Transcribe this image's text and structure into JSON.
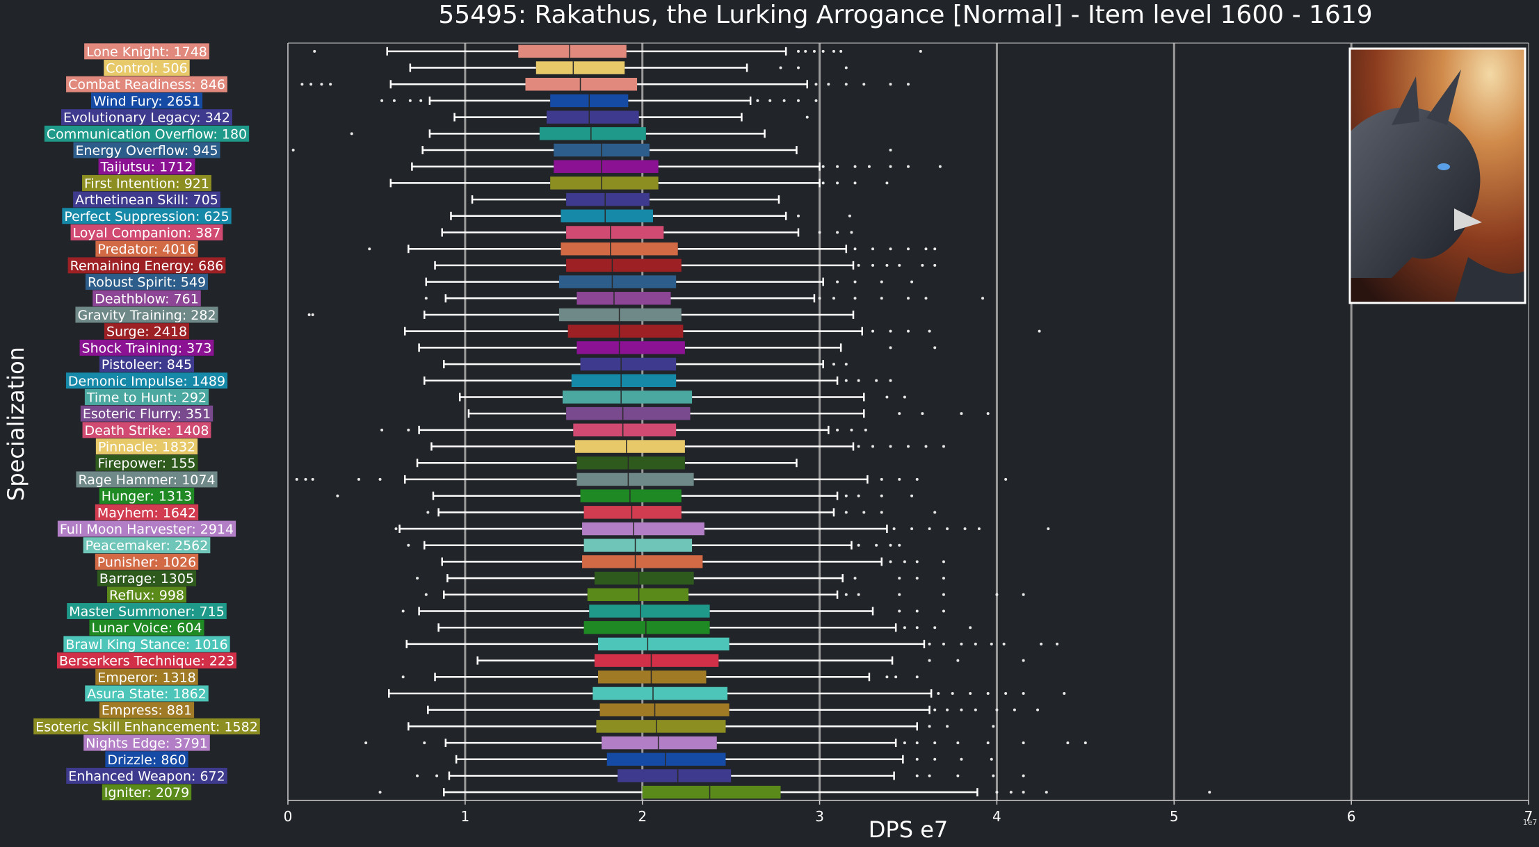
{
  "chart_data": {
    "type": "box",
    "title": "55495: Rakathus, the Lurking Arrogance [Normal] - Item level 1600 - 1619",
    "xlabel": "DPS e7",
    "ylabel": "Specialization",
    "xlim": [
      0,
      7
    ],
    "x_ticks": [
      "0",
      "1",
      "2",
      "3",
      "4",
      "5",
      "6",
      "7"
    ],
    "x_offset_label": "1e7",
    "grid": "vertical lines at 1, 2, 3, 4, 5, 6",
    "image_panel": "boss portrait (dark dragon) in top-right corner",
    "colors": {
      "background": "#212428",
      "grid": "#9a9a9a",
      "text": "#ffffff",
      "whisker": "#ffffff"
    },
    "categories": [
      "Lone Knight: 1748",
      "Control: 506",
      "Combat Readiness: 846",
      "Wind Fury: 2651",
      "Evolutionary Legacy: 342",
      "Communication Overflow: 180",
      "Energy Overflow: 945",
      "Taijutsu: 1712",
      "First Intention: 921",
      "Arthetinean Skill: 705",
      "Perfect Suppression: 625",
      "Loyal Companion: 387",
      "Predator: 4016",
      "Remaining Energy: 686",
      "Robust Spirit: 549",
      "Deathblow: 761",
      "Gravity Training: 282",
      "Surge: 2418",
      "Shock Training: 373",
      "Pistoleer: 845",
      "Demonic Impulse: 1489",
      "Time to Hunt: 292",
      "Esoteric Flurry: 351",
      "Death Strike: 1408",
      "Pinnacle: 1832",
      "Firepower: 155",
      "Rage Hammer: 1074",
      "Hunger: 1313",
      "Mayhem: 1642",
      "Full Moon Harvester: 2914",
      "Peacemaker: 2562",
      "Punisher: 1026",
      "Barrage: 1305",
      "Reflux: 998",
      "Master Summoner: 715",
      "Lunar Voice: 604",
      "Brawl King Stance: 1016",
      "Berserkers Technique: 223",
      "Emperor: 1318",
      "Asura State: 1862",
      "Empress: 881",
      "Esoteric Skill Enhancement: 1582",
      "Nights Edge: 3791",
      "Drizzle: 860",
      "Enhanced Weapon: 672",
      "Igniter: 2079"
    ],
    "series": [
      {
        "color": "#e0897c",
        "values": {
          "whislo": 0.56,
          "q1": 1.3,
          "med": 1.59,
          "q3": 1.91,
          "whishi": 2.81,
          "fliers": [
            0.15,
            2.88,
            2.92,
            2.97,
            3.02,
            3.08,
            3.12,
            3.57
          ]
        }
      },
      {
        "color": "#e8c96a",
        "values": {
          "whislo": 0.69,
          "q1": 1.4,
          "med": 1.61,
          "q3": 1.9,
          "whishi": 2.59,
          "fliers": [
            2.78,
            2.88,
            3.15
          ]
        }
      },
      {
        "color": "#e0897c",
        "values": {
          "whislo": 0.58,
          "q1": 1.34,
          "med": 1.65,
          "q3": 1.97,
          "whishi": 2.93,
          "fliers": [
            0.08,
            0.13,
            0.19,
            0.24,
            2.98,
            3.05,
            3.15,
            3.25,
            3.4,
            3.5
          ]
        }
      },
      {
        "color": "#154aa5",
        "values": {
          "whislo": 0.8,
          "q1": 1.48,
          "med": 1.7,
          "q3": 1.92,
          "whishi": 2.61,
          "fliers": [
            0.53,
            0.6,
            0.69,
            0.75,
            2.65,
            2.72,
            2.8,
            2.88,
            2.98
          ]
        }
      },
      {
        "color": "#3e3a8e",
        "values": {
          "whislo": 0.94,
          "q1": 1.46,
          "med": 1.7,
          "q3": 1.98,
          "whishi": 2.56,
          "fliers": [
            2.93
          ]
        }
      },
      {
        "color": "#1f9a8a",
        "values": {
          "whislo": 0.8,
          "q1": 1.42,
          "med": 1.71,
          "q3": 2.02,
          "whishi": 2.69,
          "fliers": [
            0.36
          ]
        }
      },
      {
        "color": "#2d5d8a",
        "values": {
          "whislo": 0.76,
          "q1": 1.5,
          "med": 1.77,
          "q3": 2.04,
          "whishi": 2.87,
          "fliers": [
            0.03,
            3.4
          ]
        }
      },
      {
        "color": "#8a1293",
        "values": {
          "whislo": 0.7,
          "q1": 1.5,
          "med": 1.77,
          "q3": 2.09,
          "whishi": 3.0,
          "fliers": [
            3.02,
            3.1,
            3.2,
            3.28,
            3.4,
            3.5,
            3.68
          ]
        }
      },
      {
        "color": "#8d8e22",
        "values": {
          "whislo": 0.58,
          "q1": 1.48,
          "med": 1.77,
          "q3": 2.09,
          "whishi": 3.0,
          "fliers": [
            3.02,
            3.1,
            3.2,
            3.38
          ]
        }
      },
      {
        "color": "#3e3a8e",
        "values": {
          "whislo": 1.04,
          "q1": 1.57,
          "med": 1.79,
          "q3": 2.04,
          "whishi": 2.77,
          "fliers": []
        }
      },
      {
        "color": "#1688a8",
        "values": {
          "whislo": 0.92,
          "q1": 1.54,
          "med": 1.79,
          "q3": 2.06,
          "whishi": 2.81,
          "fliers": [
            2.88,
            3.17
          ]
        }
      },
      {
        "color": "#d04a72",
        "values": {
          "whislo": 0.87,
          "q1": 1.57,
          "med": 1.82,
          "q3": 2.12,
          "whishi": 2.88,
          "fliers": [
            3.0,
            3.1,
            3.18
          ]
        }
      },
      {
        "color": "#d26a46",
        "values": {
          "whislo": 0.68,
          "q1": 1.54,
          "med": 1.82,
          "q3": 2.2,
          "whishi": 3.15,
          "fliers": [
            0.46,
            3.2,
            3.3,
            3.4,
            3.5,
            3.6,
            3.65
          ]
        }
      },
      {
        "color": "#9c2024",
        "values": {
          "whislo": 0.83,
          "q1": 1.57,
          "med": 1.83,
          "q3": 2.22,
          "whishi": 3.19,
          "fliers": [
            3.22,
            3.3,
            3.38,
            3.45,
            3.58,
            3.65
          ]
        }
      },
      {
        "color": "#2d5d8a",
        "values": {
          "whislo": 0.78,
          "q1": 1.53,
          "med": 1.83,
          "q3": 2.19,
          "whishi": 3.02,
          "fliers": [
            3.1,
            3.2,
            3.35,
            3.52
          ]
        }
      },
      {
        "color": "#8d4595",
        "values": {
          "whislo": 0.89,
          "q1": 1.63,
          "med": 1.84,
          "q3": 2.16,
          "whishi": 2.97,
          "fliers": [
            0.78,
            3.0,
            3.08,
            3.2,
            3.35,
            3.5,
            3.6,
            3.92
          ]
        }
      },
      {
        "color": "#6f8888",
        "values": {
          "whislo": 0.77,
          "q1": 1.53,
          "med": 1.87,
          "q3": 2.22,
          "whishi": 3.19,
          "fliers": [
            0.12,
            0.14
          ]
        }
      },
      {
        "color": "#9c2024",
        "values": {
          "whislo": 0.66,
          "q1": 1.58,
          "med": 1.87,
          "q3": 2.23,
          "whishi": 3.24,
          "fliers": [
            3.3,
            3.4,
            3.5,
            3.62,
            4.24
          ]
        }
      },
      {
        "color": "#8a1293",
        "values": {
          "whislo": 0.74,
          "q1": 1.63,
          "med": 1.87,
          "q3": 2.24,
          "whishi": 3.12,
          "fliers": [
            3.4,
            3.65
          ]
        }
      },
      {
        "color": "#3e3a8e",
        "values": {
          "whislo": 0.88,
          "q1": 1.65,
          "med": 1.88,
          "q3": 2.19,
          "whishi": 3.02,
          "fliers": [
            3.08,
            3.15
          ]
        }
      },
      {
        "color": "#1688a8",
        "values": {
          "whislo": 0.77,
          "q1": 1.6,
          "med": 1.88,
          "q3": 2.19,
          "whishi": 3.1,
          "fliers": [
            3.15,
            3.22,
            3.32,
            3.4
          ]
        }
      },
      {
        "color": "#4aa8a0",
        "values": {
          "whislo": 0.97,
          "q1": 1.55,
          "med": 1.88,
          "q3": 2.28,
          "whishi": 3.25,
          "fliers": [
            3.38,
            3.48
          ]
        }
      },
      {
        "color": "#7a4a8e",
        "values": {
          "whislo": 1.02,
          "q1": 1.57,
          "med": 1.89,
          "q3": 2.27,
          "whishi": 3.25,
          "fliers": [
            3.45,
            3.58,
            3.8,
            3.95
          ]
        }
      },
      {
        "color": "#d04a72",
        "values": {
          "whislo": 0.74,
          "q1": 1.61,
          "med": 1.89,
          "q3": 2.19,
          "whishi": 3.05,
          "fliers": [
            0.53,
            0.68,
            3.1,
            3.18,
            3.26
          ]
        }
      },
      {
        "color": "#e8c96a",
        "values": {
          "whislo": 0.81,
          "q1": 1.62,
          "med": 1.91,
          "q3": 2.24,
          "whishi": 3.19,
          "fliers": [
            3.22,
            3.3,
            3.4,
            3.5,
            3.6,
            3.7
          ]
        }
      },
      {
        "color": "#2f5a1e",
        "values": {
          "whislo": 0.73,
          "q1": 1.63,
          "med": 1.92,
          "q3": 2.24,
          "whishi": 2.87,
          "fliers": []
        }
      },
      {
        "color": "#6f8888",
        "values": {
          "whislo": 0.66,
          "q1": 1.63,
          "med": 1.92,
          "q3": 2.29,
          "whishi": 3.27,
          "fliers": [
            0.05,
            0.1,
            0.14,
            0.4,
            0.52,
            3.35,
            3.45,
            3.55,
            4.05
          ]
        }
      },
      {
        "color": "#1f8a24",
        "values": {
          "whislo": 0.82,
          "q1": 1.65,
          "med": 1.93,
          "q3": 2.22,
          "whishi": 3.1,
          "fliers": [
            0.28,
            3.15,
            3.22,
            3.35,
            3.52
          ]
        }
      },
      {
        "color": "#d23c50",
        "values": {
          "whislo": 0.85,
          "q1": 1.67,
          "med": 1.94,
          "q3": 2.22,
          "whishi": 3.08,
          "fliers": [
            0.79,
            3.15,
            3.25,
            3.35,
            3.65
          ]
        }
      },
      {
        "color": "#b27ec5",
        "values": {
          "whislo": 0.63,
          "q1": 1.66,
          "med": 1.95,
          "q3": 2.35,
          "whishi": 3.38,
          "fliers": [
            0.61,
            3.42,
            3.52,
            3.62,
            3.72,
            3.82,
            3.9,
            4.29
          ]
        }
      },
      {
        "color": "#6ec5b8",
        "values": {
          "whislo": 0.77,
          "q1": 1.67,
          "med": 1.96,
          "q3": 2.28,
          "whishi": 3.18,
          "fliers": [
            0.68,
            3.22,
            3.32,
            3.4,
            3.45
          ]
        }
      },
      {
        "color": "#d26a46",
        "values": {
          "whislo": 0.87,
          "q1": 1.66,
          "med": 1.96,
          "q3": 2.34,
          "whishi": 3.35,
          "fliers": [
            3.4,
            3.48,
            3.55,
            3.7
          ]
        }
      },
      {
        "color": "#2f5a1e",
        "values": {
          "whislo": 0.9,
          "q1": 1.73,
          "med": 1.98,
          "q3": 2.29,
          "whishi": 3.13,
          "fliers": [
            0.73,
            3.2,
            3.45,
            3.55,
            3.7
          ]
        }
      },
      {
        "color": "#5a8a1a",
        "values": {
          "whislo": 0.88,
          "q1": 1.69,
          "med": 1.98,
          "q3": 2.26,
          "whishi": 3.1,
          "fliers": [
            0.78,
            3.15,
            3.22,
            3.45,
            3.7,
            4.0,
            4.15
          ]
        }
      },
      {
        "color": "#1f9a8a",
        "values": {
          "whislo": 0.74,
          "q1": 1.7,
          "med": 1.99,
          "q3": 2.38,
          "whishi": 3.3,
          "fliers": [
            0.65,
            3.45,
            3.55,
            3.7
          ]
        }
      },
      {
        "color": "#1f8a24",
        "values": {
          "whislo": 0.85,
          "q1": 1.67,
          "med": 2.02,
          "q3": 2.38,
          "whishi": 3.43,
          "fliers": [
            3.48,
            3.55,
            3.65,
            3.85
          ]
        }
      },
      {
        "color": "#4dc5b8",
        "values": {
          "whislo": 0.67,
          "q1": 1.75,
          "med": 2.03,
          "q3": 2.49,
          "whishi": 3.59,
          "fliers": [
            3.62,
            3.7,
            3.8,
            3.88,
            3.97,
            4.04,
            4.25,
            4.34
          ]
        }
      },
      {
        "color": "#d22f48",
        "values": {
          "whislo": 1.07,
          "q1": 1.73,
          "med": 2.05,
          "q3": 2.43,
          "whishi": 3.41,
          "fliers": [
            3.62,
            3.78,
            4.15
          ]
        }
      },
      {
        "color": "#a07a24",
        "values": {
          "whislo": 0.83,
          "q1": 1.75,
          "med": 2.05,
          "q3": 2.36,
          "whishi": 3.28,
          "fliers": [
            0.65,
            3.38,
            3.43,
            3.55
          ]
        }
      },
      {
        "color": "#4dc5b8",
        "values": {
          "whislo": 0.57,
          "q1": 1.72,
          "med": 2.06,
          "q3": 2.48,
          "whishi": 3.63,
          "fliers": [
            3.67,
            3.75,
            3.85,
            3.95,
            4.05,
            4.15,
            4.38
          ]
        }
      },
      {
        "color": "#a07a24",
        "values": {
          "whislo": 0.79,
          "q1": 1.76,
          "med": 2.07,
          "q3": 2.49,
          "whishi": 3.62,
          "fliers": [
            3.65,
            3.72,
            3.8,
            3.88,
            4.0,
            4.1,
            4.23
          ]
        }
      },
      {
        "color": "#8d8e22",
        "values": {
          "whislo": 0.68,
          "q1": 1.74,
          "med": 2.08,
          "q3": 2.47,
          "whishi": 3.55,
          "fliers": [
            3.62,
            3.72,
            3.98
          ]
        }
      },
      {
        "color": "#b27ec5",
        "values": {
          "whislo": 0.89,
          "q1": 1.77,
          "med": 2.09,
          "q3": 2.42,
          "whishi": 3.43,
          "fliers": [
            0.44,
            0.77,
            3.48,
            3.55,
            3.65,
            3.78,
            3.95,
            4.15,
            4.4,
            4.5
          ]
        }
      },
      {
        "color": "#154aa5",
        "values": {
          "whislo": 0.95,
          "q1": 1.8,
          "med": 2.13,
          "q3": 2.47,
          "whishi": 3.47,
          "fliers": [
            3.55,
            3.65,
            3.8,
            3.97
          ]
        }
      },
      {
        "color": "#3e3a8e",
        "values": {
          "whislo": 0.91,
          "q1": 1.86,
          "med": 2.2,
          "q3": 2.5,
          "whishi": 3.42,
          "fliers": [
            0.73,
            0.84,
            3.55,
            3.62,
            3.78,
            3.98,
            4.15
          ]
        }
      },
      {
        "color": "#5a8a1a",
        "values": {
          "whislo": 0.88,
          "q1": 2.0,
          "med": 2.38,
          "q3": 2.78,
          "whishi": 3.89,
          "fliers": [
            0.52,
            4.0,
            4.08,
            4.15,
            4.28,
            5.2
          ]
        }
      }
    ]
  }
}
